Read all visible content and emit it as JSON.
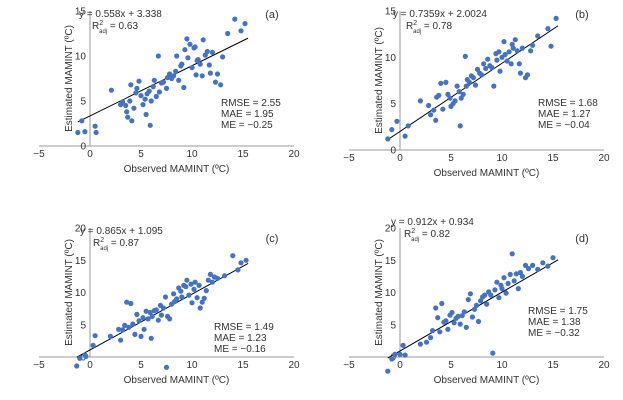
{
  "chart_data": [
    {
      "type": "scatter",
      "panel_label": "(a)",
      "equation": "y = 0.558x + 3.338",
      "r2_main": "R",
      "r2_sup": "2",
      "r2_sub": "adj",
      "r2_value": " = 0.63",
      "stats": [
        "RMSE = 2.55",
        "MAE = 1.95",
        "ME = −0.25"
      ],
      "xlabel": "Observed MAMINT (ºC)",
      "ylabel": "Estimated MAMINT (ºC)",
      "xlim": [
        -5,
        20
      ],
      "ylim": [
        0,
        15
      ],
      "xticks": [
        -5,
        0,
        5,
        10,
        15,
        20
      ],
      "yticks": [
        0,
        5,
        10,
        15
      ],
      "trendline": {
        "slope": 0.558,
        "intercept": 3.338,
        "x_range": [
          -1.2,
          15.5
        ]
      },
      "points": [
        [
          -1.2,
          1.5
        ],
        [
          -0.8,
          2.8
        ],
        [
          -0.5,
          1.6
        ],
        [
          0.5,
          2.2
        ],
        [
          0.6,
          1.5
        ],
        [
          2.1,
          6.2
        ],
        [
          3.0,
          4.6
        ],
        [
          3.2,
          4.9
        ],
        [
          3.5,
          4.5
        ],
        [
          3.6,
          3.8
        ],
        [
          3.7,
          3.2
        ],
        [
          3.9,
          5.0
        ],
        [
          4.0,
          6.8
        ],
        [
          4.1,
          2.8
        ],
        [
          4.3,
          4.2
        ],
        [
          4.5,
          5.9
        ],
        [
          4.6,
          6.4
        ],
        [
          4.8,
          7.2
        ],
        [
          5.0,
          5.6
        ],
        [
          5.2,
          4.6
        ],
        [
          5.4,
          5.2
        ],
        [
          5.5,
          3.5
        ],
        [
          5.6,
          5.8
        ],
        [
          5.8,
          6.1
        ],
        [
          5.9,
          2.3
        ],
        [
          6.0,
          5.0
        ],
        [
          6.2,
          6.6
        ],
        [
          6.3,
          7.3
        ],
        [
          6.5,
          5.5
        ],
        [
          6.7,
          10.0
        ],
        [
          6.8,
          6.0
        ],
        [
          7.0,
          7.0
        ],
        [
          7.2,
          7.1
        ],
        [
          7.5,
          6.4
        ],
        [
          7.6,
          7.6
        ],
        [
          7.8,
          8.0
        ],
        [
          8.0,
          7.5
        ],
        [
          8.2,
          7.8
        ],
        [
          8.4,
          8.3
        ],
        [
          8.5,
          10.0
        ],
        [
          8.7,
          7.3
        ],
        [
          8.9,
          8.9
        ],
        [
          9.0,
          9.1
        ],
        [
          9.2,
          6.5
        ],
        [
          9.3,
          10.7
        ],
        [
          9.5,
          11.9
        ],
        [
          9.6,
          9.8
        ],
        [
          9.8,
          11.3
        ],
        [
          10.0,
          8.7
        ],
        [
          10.2,
          10.9
        ],
        [
          10.3,
          11.0
        ],
        [
          10.4,
          7.9
        ],
        [
          10.5,
          9.5
        ],
        [
          10.6,
          9.6
        ],
        [
          10.8,
          9.1
        ],
        [
          11.0,
          7.8
        ],
        [
          11.1,
          11.8
        ],
        [
          11.3,
          10.1
        ],
        [
          11.5,
          10.5
        ],
        [
          11.7,
          9.0
        ],
        [
          11.8,
          8.1
        ],
        [
          12.0,
          10.4
        ],
        [
          12.3,
          7.1
        ],
        [
          12.5,
          8.0
        ],
        [
          12.8,
          6.8
        ],
        [
          13.0,
          9.9
        ],
        [
          13.5,
          12.5
        ],
        [
          14.2,
          14.1
        ],
        [
          14.8,
          12.8
        ],
        [
          15.2,
          13.6
        ]
      ]
    },
    {
      "type": "scatter",
      "panel_label": "(b)",
      "equation": "y = 0.7359x + 2.0024",
      "r2_main": "R",
      "r2_sup": "2",
      "r2_sub": "adj",
      "r2_value": " = 0.78",
      "stats": [
        "RMSE = 1.68",
        "MAE = 1.27",
        "ME = −0.04"
      ],
      "xlabel": "Observed MAMINT (ºC)",
      "ylabel": "Estimated MAMINT (ºC)",
      "xlim": [
        -5,
        20
      ],
      "ylim": [
        0,
        15
      ],
      "xticks": [
        -5,
        0,
        5,
        10,
        15,
        20
      ],
      "yticks": [
        0,
        5,
        10,
        15
      ],
      "trendline": {
        "slope": 0.7359,
        "intercept": 2.0024,
        "x_range": [
          -1.2,
          15.5
        ]
      },
      "points": [
        [
          -1.2,
          1.2
        ],
        [
          -0.8,
          2.2
        ],
        [
          -0.3,
          3.1
        ],
        [
          0.5,
          1.5
        ],
        [
          0.8,
          2.6
        ],
        [
          2.0,
          5.3
        ],
        [
          2.8,
          4.8
        ],
        [
          3.0,
          3.8
        ],
        [
          3.3,
          4.3
        ],
        [
          3.5,
          3.2
        ],
        [
          3.6,
          5.7
        ],
        [
          3.8,
          5.9
        ],
        [
          4.0,
          7.2
        ],
        [
          4.2,
          4.4
        ],
        [
          4.5,
          7.3
        ],
        [
          4.7,
          6.0
        ],
        [
          4.9,
          5.6
        ],
        [
          5.0,
          4.7
        ],
        [
          5.2,
          5.0
        ],
        [
          5.4,
          5.3
        ],
        [
          5.6,
          6.9
        ],
        [
          5.8,
          6.3
        ],
        [
          5.9,
          2.6
        ],
        [
          6.0,
          5.6
        ],
        [
          6.2,
          6.0
        ],
        [
          6.4,
          10.1
        ],
        [
          6.5,
          6.9
        ],
        [
          6.6,
          7.6
        ],
        [
          6.8,
          7.3
        ],
        [
          7.0,
          8.0
        ],
        [
          7.2,
          7.8
        ],
        [
          7.4,
          7.0
        ],
        [
          7.6,
          8.7
        ],
        [
          7.8,
          8.3
        ],
        [
          8.0,
          8.1
        ],
        [
          8.2,
          9.3
        ],
        [
          8.4,
          8.8
        ],
        [
          8.6,
          9.8
        ],
        [
          8.8,
          9.1
        ],
        [
          9.0,
          8.9
        ],
        [
          9.2,
          6.9
        ],
        [
          9.4,
          10.4
        ],
        [
          9.5,
          9.7
        ],
        [
          9.7,
          10.6
        ],
        [
          9.8,
          8.5
        ],
        [
          10.0,
          10.0
        ],
        [
          10.2,
          11.7
        ],
        [
          10.3,
          10.3
        ],
        [
          10.5,
          9.6
        ],
        [
          10.7,
          10.6
        ],
        [
          10.9,
          9.3
        ],
        [
          11.0,
          11.4
        ],
        [
          11.1,
          11.0
        ],
        [
          11.3,
          11.9
        ],
        [
          11.5,
          10.7
        ],
        [
          11.7,
          9.3
        ],
        [
          11.8,
          8.3
        ],
        [
          12.0,
          11.0
        ],
        [
          12.3,
          7.8
        ],
        [
          12.5,
          8.1
        ],
        [
          12.8,
          10.7
        ],
        [
          13.0,
          11.3
        ],
        [
          13.5,
          12.3
        ],
        [
          14.5,
          13.1
        ],
        [
          14.8,
          11.2
        ],
        [
          15.3,
          14.2
        ]
      ]
    },
    {
      "type": "scatter",
      "panel_label": "(c)",
      "equation": "y = 0.865x + 1.095",
      "r2_main": "R",
      "r2_sup": "2",
      "r2_sub": "adj",
      "r2_value": " = 0.87",
      "stats": [
        "RMSE = 1.49",
        "MAE = 1.23",
        "ME = −0.16"
      ],
      "xlabel": "Observed MAMINT (ºC)",
      "ylabel": "Estimated MAMINT (ºC)",
      "xlim": [
        -5,
        20
      ],
      "ylim": [
        0,
        20
      ],
      "xticks": [
        -5,
        0,
        5,
        10,
        15,
        20
      ],
      "yticks": [
        0,
        5,
        10,
        15,
        20
      ],
      "trendline": {
        "slope": 0.865,
        "intercept": 1.095,
        "x_range": [
          -1.3,
          15.5
        ]
      },
      "points": [
        [
          -1.3,
          -1.4
        ],
        [
          -1.0,
          -0.2
        ],
        [
          -0.5,
          0.3
        ],
        [
          -0.4,
          0.1
        ],
        [
          0.3,
          1.8
        ],
        [
          0.5,
          3.3
        ],
        [
          2.0,
          3.2
        ],
        [
          2.8,
          4.3
        ],
        [
          3.0,
          2.6
        ],
        [
          3.2,
          4.2
        ],
        [
          3.4,
          4.9
        ],
        [
          3.6,
          8.5
        ],
        [
          3.8,
          4.6
        ],
        [
          4.0,
          8.3
        ],
        [
          4.2,
          5.1
        ],
        [
          4.4,
          3.5
        ],
        [
          4.6,
          6.6
        ],
        [
          4.8,
          5.6
        ],
        [
          5.0,
          3.2
        ],
        [
          5.2,
          6.1
        ],
        [
          5.3,
          4.3
        ],
        [
          5.5,
          7.1
        ],
        [
          5.7,
          5.9
        ],
        [
          5.9,
          6.9
        ],
        [
          6.0,
          2.9
        ],
        [
          6.1,
          6.3
        ],
        [
          6.3,
          7.2
        ],
        [
          6.5,
          7.3
        ],
        [
          6.7,
          5.7
        ],
        [
          6.9,
          8.0
        ],
        [
          7.0,
          6.5
        ],
        [
          7.2,
          7.6
        ],
        [
          7.4,
          9.3
        ],
        [
          7.6,
          6.3
        ],
        [
          7.8,
          5.9
        ],
        [
          8.0,
          8.2
        ],
        [
          8.2,
          9.8
        ],
        [
          8.3,
          8.6
        ],
        [
          8.5,
          9.0
        ],
        [
          8.7,
          10.7
        ],
        [
          8.9,
          10.2
        ],
        [
          9.0,
          9.3
        ],
        [
          9.2,
          11.1
        ],
        [
          9.4,
          10.9
        ],
        [
          9.5,
          11.9
        ],
        [
          9.7,
          9.6
        ],
        [
          9.9,
          11.3
        ],
        [
          10.0,
          8.4
        ],
        [
          10.2,
          10.5
        ],
        [
          10.3,
          11.6
        ],
        [
          10.5,
          9.2
        ],
        [
          10.7,
          11.1
        ],
        [
          10.8,
          7.6
        ],
        [
          11.0,
          8.5
        ],
        [
          11.2,
          9.1
        ],
        [
          11.4,
          10.3
        ],
        [
          11.6,
          11.9
        ],
        [
          11.8,
          12.8
        ],
        [
          12.0,
          11.6
        ],
        [
          12.2,
          12.4
        ],
        [
          12.5,
          12.2
        ],
        [
          13.2,
          12.6
        ],
        [
          14.0,
          15.7
        ],
        [
          14.5,
          13.5
        ],
        [
          14.8,
          14.6
        ],
        [
          15.3,
          15.0
        ],
        [
          7.5,
          -1.6
        ]
      ]
    },
    {
      "type": "scatter",
      "panel_label": "(d)",
      "equation": "y = 0.912x + 0.934",
      "r2_main": "R",
      "r2_sup": "2",
      "r2_sub": "adj",
      "r2_value": " = 0.82",
      "stats": [
        "RMSE = 1.75",
        "MAE = 1.38",
        "ME = −0.32"
      ],
      "xlabel": "Observed MAMINT (ºC)",
      "ylabel": "Estimated MAMINT (ºC)",
      "xlim": [
        -5,
        20
      ],
      "ylim": [
        0,
        20
      ],
      "xticks": [
        -5,
        0,
        5,
        10,
        15,
        20
      ],
      "yticks": [
        0,
        5,
        10,
        15,
        20
      ],
      "trendline": {
        "slope": 0.912,
        "intercept": 0.934,
        "x_range": [
          -1.2,
          15.5
        ]
      },
      "points": [
        [
          -1.2,
          -2.2
        ],
        [
          -0.8,
          -0.3
        ],
        [
          -0.5,
          0.4
        ],
        [
          0.0,
          0.4
        ],
        [
          0.3,
          1.8
        ],
        [
          0.5,
          0.3
        ],
        [
          2.0,
          2.0
        ],
        [
          2.6,
          2.3
        ],
        [
          3.0,
          3.0
        ],
        [
          3.2,
          4.1
        ],
        [
          3.5,
          7.6
        ],
        [
          3.7,
          6.1
        ],
        [
          3.9,
          3.9
        ],
        [
          4.1,
          8.3
        ],
        [
          4.3,
          5.4
        ],
        [
          4.5,
          5.6
        ],
        [
          4.7,
          4.3
        ],
        [
          4.9,
          6.5
        ],
        [
          5.1,
          6.9
        ],
        [
          5.3,
          5.3
        ],
        [
          5.5,
          6.0
        ],
        [
          5.7,
          6.3
        ],
        [
          5.9,
          5.1
        ],
        [
          6.1,
          6.4
        ],
        [
          6.3,
          7.0
        ],
        [
          6.5,
          4.6
        ],
        [
          6.7,
          8.9
        ],
        [
          6.9,
          9.8
        ],
        [
          7.1,
          6.2
        ],
        [
          7.3,
          7.4
        ],
        [
          7.5,
          8.0
        ],
        [
          7.7,
          5.5
        ],
        [
          7.9,
          8.7
        ],
        [
          8.1,
          9.3
        ],
        [
          8.3,
          9.6
        ],
        [
          8.5,
          8.2
        ],
        [
          8.7,
          10.1
        ],
        [
          8.9,
          9.6
        ],
        [
          9.1,
          0.6
        ],
        [
          9.3,
          10.4
        ],
        [
          9.5,
          11.6
        ],
        [
          9.7,
          9.2
        ],
        [
          9.9,
          11.1
        ],
        [
          10.0,
          10.6
        ],
        [
          10.2,
          12.3
        ],
        [
          10.4,
          9.9
        ],
        [
          10.6,
          11.4
        ],
        [
          10.8,
          12.8
        ],
        [
          11.0,
          16.0
        ],
        [
          11.2,
          11.8
        ],
        [
          11.4,
          12.9
        ],
        [
          11.6,
          10.6
        ],
        [
          11.8,
          13.1
        ],
        [
          12.0,
          12.5
        ],
        [
          12.3,
          14.2
        ],
        [
          12.6,
          13.7
        ],
        [
          13.0,
          14.2
        ],
        [
          13.5,
          13.6
        ],
        [
          14.0,
          14.6
        ],
        [
          14.5,
          14.1
        ],
        [
          15.0,
          15.4
        ]
      ]
    }
  ]
}
